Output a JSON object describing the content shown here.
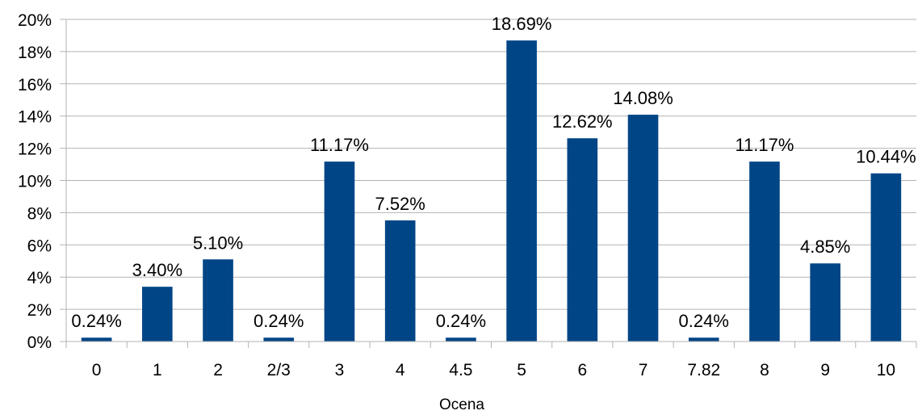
{
  "chart_data": {
    "type": "bar",
    "title": "",
    "xlabel": "Ocena",
    "ylabel": "",
    "categories": [
      "0",
      "1",
      "2",
      "2/3",
      "3",
      "4",
      "4.5",
      "5",
      "6",
      "7",
      "7.82",
      "8",
      "9",
      "10"
    ],
    "values": [
      0.24,
      3.4,
      5.1,
      0.24,
      11.17,
      7.52,
      0.24,
      18.69,
      12.62,
      14.08,
      0.24,
      11.17,
      4.85,
      10.44
    ],
    "data_labels": [
      "0.24%",
      "3.40%",
      "5.10%",
      "0.24%",
      "11.17%",
      "7.52%",
      "0.24%",
      "18.69%",
      "12.62%",
      "14.08%",
      "0.24%",
      "11.17%",
      "4.85%",
      "10.44%"
    ],
    "ylim": [
      0,
      20
    ],
    "yticks": [
      "0%",
      "2%",
      "4%",
      "6%",
      "8%",
      "10%",
      "12%",
      "14%",
      "16%",
      "18%",
      "20%"
    ],
    "grid": true,
    "legend": "none",
    "bar_color": "#004586"
  }
}
